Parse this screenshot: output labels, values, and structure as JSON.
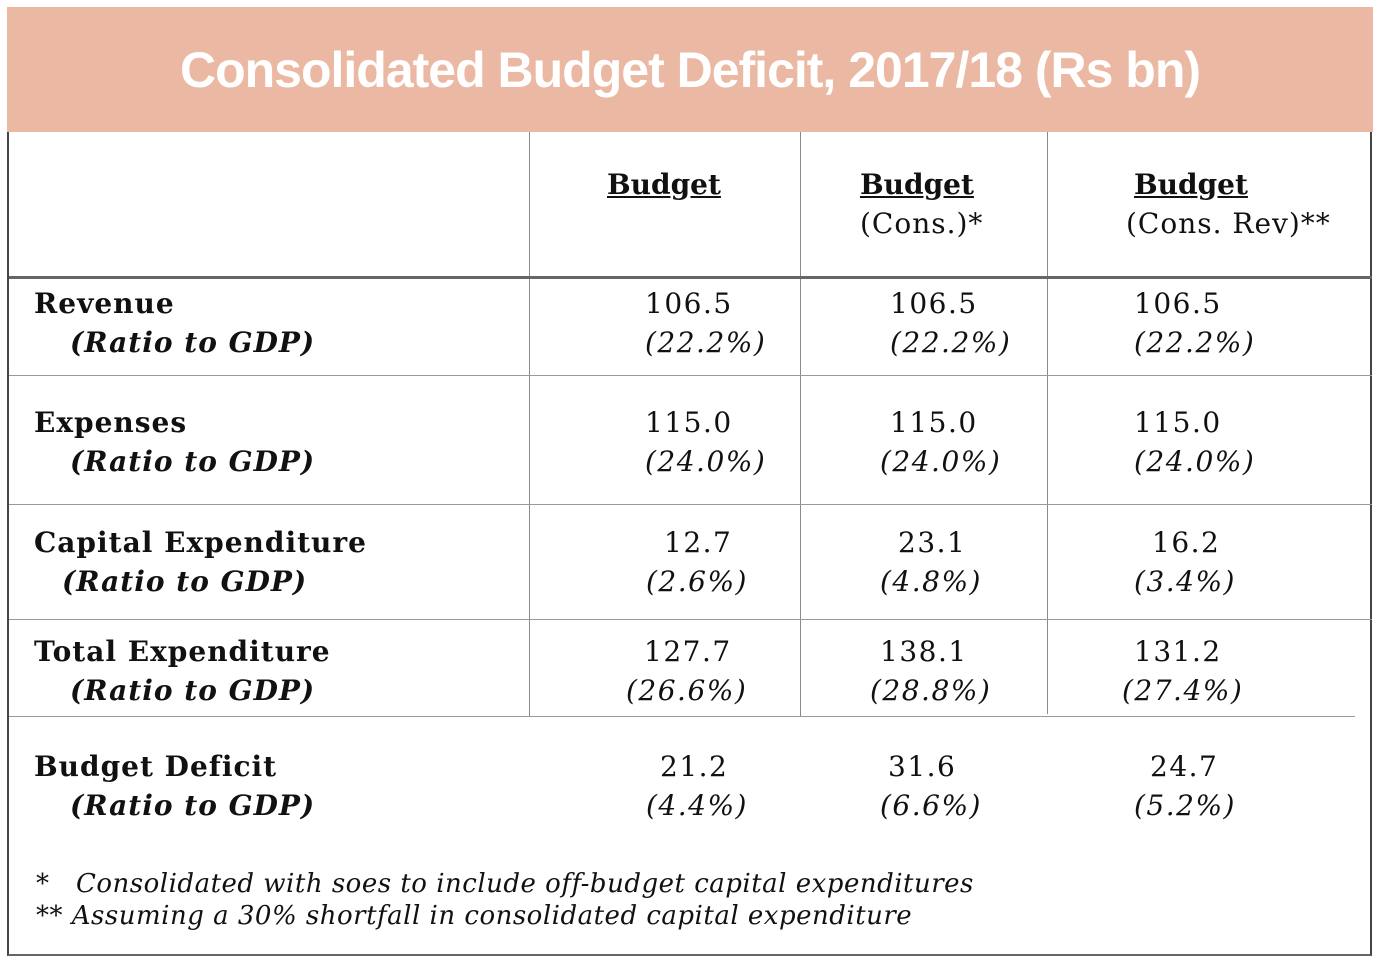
{
  "title": "Consolidated Budget Deficit, 2017/18  (Rs bn)",
  "columns": [
    {
      "title": "Budget",
      "subtitle": ""
    },
    {
      "title": "Budget",
      "subtitle": "(Cons.)*"
    },
    {
      "title": "Budget",
      "subtitle": "(Cons. Rev)**"
    }
  ],
  "rows": [
    {
      "label": "Revenue",
      "ratio_label": "(Ratio to GDP)",
      "cells": [
        {
          "value": "106.5",
          "ratio": "(22.2%)"
        },
        {
          "value": "106.5",
          "ratio": "(22.2%)"
        },
        {
          "value": "106.5",
          "ratio": "(22.2%)"
        }
      ]
    },
    {
      "label": "Expenses",
      "ratio_label": "(Ratio to GDP)",
      "cells": [
        {
          "value": "115.0",
          "ratio": "(24.0%)"
        },
        {
          "value": "115.0",
          "ratio": "(24.0%)"
        },
        {
          "value": "115.0",
          "ratio": "(24.0%)"
        }
      ]
    },
    {
      "label": "Capital Expenditure",
      "ratio_label": "(Ratio to GDP)",
      "cells": [
        {
          "value": "12.7",
          "ratio": "(2.6%)"
        },
        {
          "value": "23.1",
          "ratio": "(4.8%)"
        },
        {
          "value": "16.2",
          "ratio": "(3.4%)"
        }
      ]
    },
    {
      "label": "Total Expenditure",
      "ratio_label": "(Ratio to GDP)",
      "cells": [
        {
          "value": "127.7",
          "ratio": "(26.6%)"
        },
        {
          "value": "138.1",
          "ratio": "(28.8%)"
        },
        {
          "value": "131.2",
          "ratio": "(27.4%)"
        }
      ]
    },
    {
      "label": "Budget Deficit",
      "ratio_label": "(Ratio to GDP)",
      "cells": [
        {
          "value": "21.2",
          "ratio": "(4.4%)"
        },
        {
          "value": "31.6",
          "ratio": "(6.6%)"
        },
        {
          "value": "24.7",
          "ratio": "(5.2%)"
        }
      ]
    }
  ],
  "notes": [
    {
      "mark": "*",
      "text": "Consolidated with soes to include off-budget capital expenditures"
    },
    {
      "mark": "**",
      "text": "Assuming a 30% shortfall in consolidated capital expenditure"
    }
  ],
  "chart_data": {
    "type": "table",
    "title": "Consolidated Budget Deficit, 2017/18  (Rs bn)",
    "columns": [
      "Budget",
      "Budget (Cons.)*",
      "Budget (Cons. Rev)**"
    ],
    "rows": [
      {
        "label": "Revenue",
        "values": [
          106.5,
          106.5,
          106.5
        ],
        "ratio_to_gdp_pct": [
          22.2,
          22.2,
          22.2
        ]
      },
      {
        "label": "Expenses",
        "values": [
          115.0,
          115.0,
          115.0
        ],
        "ratio_to_gdp_pct": [
          24.0,
          24.0,
          24.0
        ]
      },
      {
        "label": "Capital Expenditure",
        "values": [
          12.7,
          23.1,
          16.2
        ],
        "ratio_to_gdp_pct": [
          2.6,
          4.8,
          3.4
        ]
      },
      {
        "label": "Total Expenditure",
        "values": [
          127.7,
          138.1,
          131.2
        ],
        "ratio_to_gdp_pct": [
          26.6,
          28.8,
          27.4
        ]
      },
      {
        "label": "Budget Deficit",
        "values": [
          21.2,
          31.6,
          24.7
        ],
        "ratio_to_gdp_pct": [
          4.4,
          6.6,
          5.2
        ]
      }
    ]
  }
}
